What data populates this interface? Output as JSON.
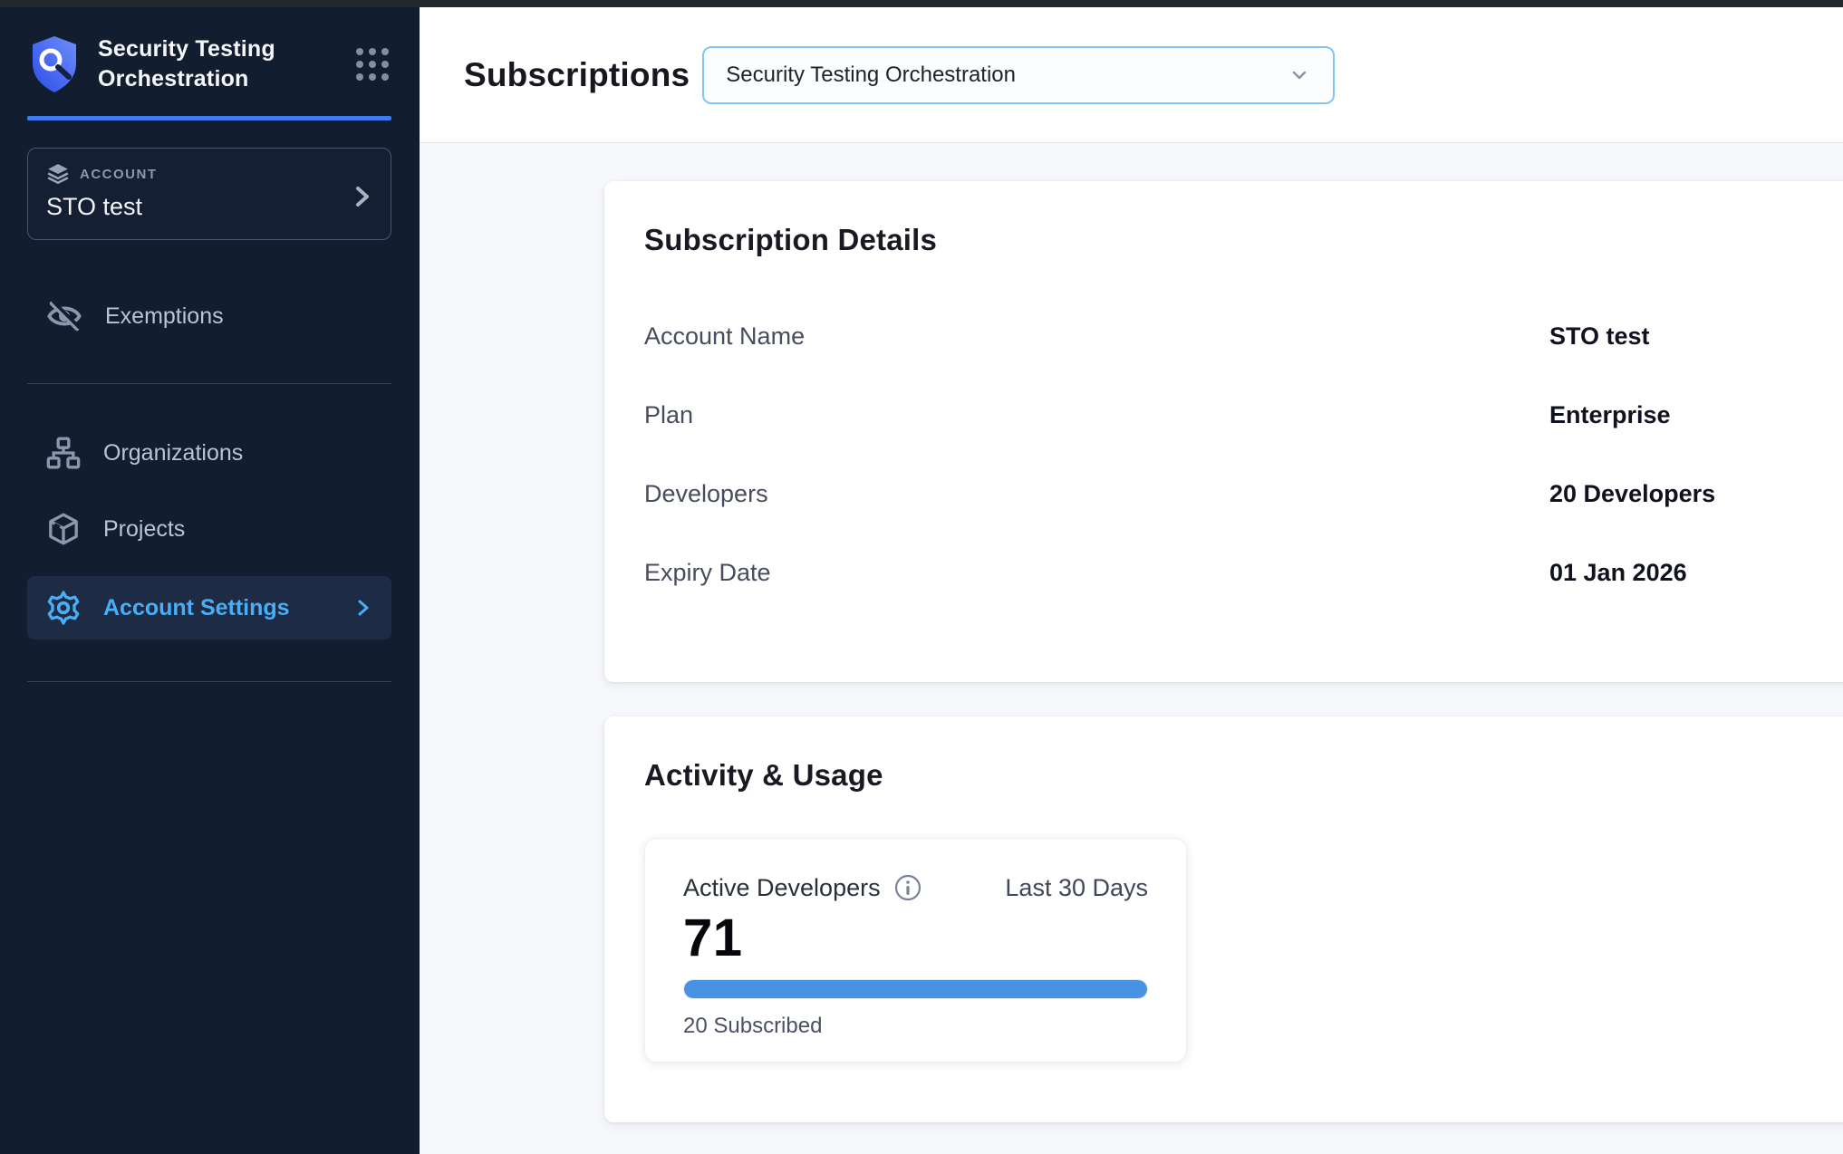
{
  "sidebar": {
    "product_title": "Security Testing Orchestration",
    "account": {
      "label": "ACCOUNT",
      "name": "STO test"
    },
    "nav": [
      {
        "label": "Exemptions"
      },
      {
        "label": "Organizations"
      },
      {
        "label": "Projects"
      },
      {
        "label": "Account Settings"
      }
    ]
  },
  "header": {
    "title": "Subscriptions",
    "module_selector": {
      "value": "Security Testing Orchestration"
    }
  },
  "subscription_details": {
    "title": "Subscription Details",
    "rows": [
      {
        "label": "Account Name",
        "value": "STO test"
      },
      {
        "label": "Plan",
        "value": "Enterprise"
      },
      {
        "label": "Developers",
        "value": "20 Developers"
      },
      {
        "label": "Expiry Date",
        "value": "01 Jan 2026"
      }
    ]
  },
  "activity_usage": {
    "title": "Activity & Usage",
    "card": {
      "metric_label": "Active Developers",
      "period": "Last 30 Days",
      "value": "71",
      "subscribed": "20 Subscribed",
      "progress_percent": 100
    }
  },
  "colors": {
    "sidebar_bg": "#121d30",
    "accent_blue": "#3c7bf0",
    "active_nav_blue": "#49aef5",
    "dropdown_border_blue": "#82c5f2",
    "progress_blue": "#4892e4"
  }
}
